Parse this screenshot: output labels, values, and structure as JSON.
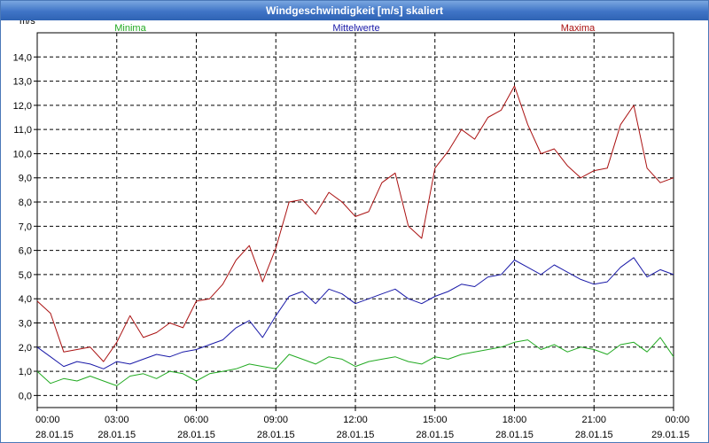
{
  "window": {
    "title": "Windgeschwindigkeit [m/s] skaliert"
  },
  "chart_data": {
    "type": "line",
    "title": "Windgeschwindigkeit [m/s] skaliert",
    "ylabel": "m/s",
    "xlabel": "",
    "ylim": [
      -0.5,
      15.0
    ],
    "xlim": [
      0,
      24
    ],
    "grid": true,
    "legend_position": "top",
    "colors": {
      "min": "#22aa22",
      "mean": "#1a1aa8",
      "max": "#aa1111",
      "grid": "#000000"
    },
    "y_ticks": [
      "0,0",
      "1,0",
      "2,0",
      "3,0",
      "4,0",
      "5,0",
      "6,0",
      "7,0",
      "8,0",
      "9,0",
      "10,0",
      "11,0",
      "12,0",
      "13,0",
      "14,0"
    ],
    "x_ticks": [
      {
        "time": "00:00",
        "date": "28.01.15"
      },
      {
        "time": "03:00",
        "date": "28.01.15"
      },
      {
        "time": "06:00",
        "date": "28.01.15"
      },
      {
        "time": "09:00",
        "date": "28.01.15"
      },
      {
        "time": "12:00",
        "date": "28.01.15"
      },
      {
        "time": "15:00",
        "date": "28.01.15"
      },
      {
        "time": "18:00",
        "date": "28.01.15"
      },
      {
        "time": "21:00",
        "date": "28.01.15"
      },
      {
        "time": "00:00",
        "date": "29.01.15"
      }
    ],
    "series": [
      {
        "name": "Minima",
        "color": "#22aa22",
        "x": [
          0,
          0.5,
          1,
          1.5,
          2,
          2.5,
          3,
          3.5,
          4,
          4.5,
          5,
          5.5,
          6,
          6.5,
          7,
          7.5,
          8,
          8.5,
          9,
          9.5,
          10,
          10.5,
          11,
          11.5,
          12,
          12.5,
          13,
          13.5,
          14,
          14.5,
          15,
          15.5,
          16,
          16.5,
          17,
          17.5,
          18,
          18.5,
          19,
          19.5,
          20,
          20.5,
          21,
          21.5,
          22,
          22.5,
          23,
          23.5,
          24
        ],
        "values": [
          1.0,
          0.5,
          0.7,
          0.6,
          0.8,
          0.6,
          0.4,
          0.8,
          0.9,
          0.7,
          1.0,
          0.9,
          0.6,
          0.9,
          1.0,
          1.1,
          1.3,
          1.2,
          1.1,
          1.7,
          1.5,
          1.3,
          1.6,
          1.5,
          1.2,
          1.4,
          1.5,
          1.6,
          1.4,
          1.3,
          1.6,
          1.5,
          1.7,
          1.8,
          1.9,
          2.0,
          2.2,
          2.3,
          1.9,
          2.1,
          1.8,
          2.0,
          1.9,
          1.7,
          2.1,
          2.2,
          1.8,
          2.4,
          1.6
        ]
      },
      {
        "name": "Mittelwerte",
        "color": "#1a1aa8",
        "x": [
          0,
          0.5,
          1,
          1.5,
          2,
          2.5,
          3,
          3.5,
          4,
          4.5,
          5,
          5.5,
          6,
          6.5,
          7,
          7.5,
          8,
          8.5,
          9,
          9.5,
          10,
          10.5,
          11,
          11.5,
          12,
          12.5,
          13,
          13.5,
          14,
          14.5,
          15,
          15.5,
          16,
          16.5,
          17,
          17.5,
          18,
          18.5,
          19,
          19.5,
          20,
          20.5,
          21,
          21.5,
          22,
          22.5,
          23,
          23.5,
          24
        ],
        "values": [
          2.0,
          1.6,
          1.2,
          1.4,
          1.3,
          1.1,
          1.4,
          1.3,
          1.5,
          1.7,
          1.6,
          1.8,
          1.9,
          2.1,
          2.3,
          2.8,
          3.1,
          2.4,
          3.3,
          4.1,
          4.3,
          3.8,
          4.4,
          4.2,
          3.8,
          4.0,
          4.2,
          4.4,
          4.0,
          3.8,
          4.1,
          4.3,
          4.6,
          4.5,
          4.9,
          5.0,
          5.6,
          5.3,
          5.0,
          5.4,
          5.1,
          4.8,
          4.6,
          4.7,
          5.3,
          5.7,
          4.9,
          5.2,
          5.0
        ]
      },
      {
        "name": "Maxima",
        "color": "#aa1111",
        "x": [
          0,
          0.5,
          1,
          1.5,
          2,
          2.5,
          3,
          3.5,
          4,
          4.5,
          5,
          5.5,
          6,
          6.5,
          7,
          7.5,
          8,
          8.5,
          9,
          9.5,
          10,
          10.5,
          11,
          11.5,
          12,
          12.5,
          13,
          13.5,
          14,
          14.5,
          15,
          15.5,
          16,
          16.5,
          17,
          17.5,
          18,
          18.5,
          19,
          19.5,
          20,
          20.5,
          21,
          21.5,
          22,
          22.5,
          23,
          23.5,
          24
        ],
        "values": [
          3.9,
          3.4,
          1.8,
          1.9,
          2.0,
          1.4,
          2.2,
          3.3,
          2.4,
          2.6,
          3.0,
          2.8,
          3.9,
          4.0,
          4.6,
          5.6,
          6.2,
          4.7,
          6.1,
          8.0,
          8.1,
          7.5,
          8.4,
          8.0,
          7.4,
          7.6,
          8.8,
          9.2,
          7.0,
          6.5,
          9.4,
          10.1,
          11.0,
          10.6,
          11.5,
          11.8,
          12.8,
          11.2,
          10.0,
          10.2,
          9.5,
          9.0,
          9.3,
          9.4,
          11.2,
          12.0,
          9.4,
          8.8,
          9.0
        ]
      }
    ]
  }
}
